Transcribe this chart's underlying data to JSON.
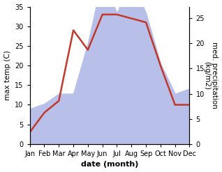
{
  "months": [
    "Jan",
    "Feb",
    "Mar",
    "Apr",
    "May",
    "Jun",
    "Jul",
    "Aug",
    "Sep",
    "Oct",
    "Nov",
    "Dec"
  ],
  "month_positions": [
    1,
    2,
    3,
    4,
    5,
    6,
    7,
    8,
    9,
    10,
    11,
    12
  ],
  "temperature": [
    3,
    8,
    11,
    29,
    24,
    33,
    33,
    32,
    31,
    20,
    10,
    10
  ],
  "precipitation_kg": [
    7,
    8,
    10,
    10,
    20,
    33,
    26,
    33,
    26,
    16,
    10,
    11
  ],
  "temp_color": "#c0392b",
  "precip_color_fill": "#b8bfe8",
  "temp_ylim": [
    0,
    35
  ],
  "precip_ylim": [
    0,
    27.3
  ],
  "temp_yticks": [
    0,
    5,
    10,
    15,
    20,
    25,
    30,
    35
  ],
  "precip_yticks": [
    0,
    5,
    10,
    15,
    20,
    25
  ],
  "ylabel_left": "max temp (C)",
  "ylabel_right": "med. precipitation\n(kg/m2)",
  "xlabel": "date (month)",
  "background_color": "#ffffff",
  "line_width": 1.8,
  "xlabel_fontsize": 8,
  "ylabel_fontsize": 7.5,
  "tick_fontsize": 7
}
